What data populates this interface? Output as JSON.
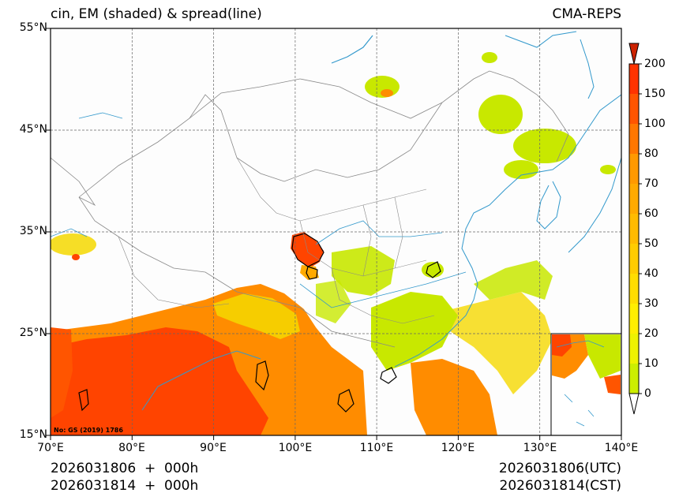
{
  "header": {
    "title_left": "cin, EM (shaded) & spread(line)",
    "title_right": "CMA-REPS"
  },
  "axes": {
    "lat_labels": [
      "55°N",
      "45°N",
      "35°N",
      "25°N",
      "15°N"
    ],
    "lon_labels": [
      "70°E",
      "80°E",
      "90°E",
      "100°E",
      "110°E",
      "120°E",
      "130°E",
      "140°E"
    ]
  },
  "colorbar": {
    "labels": [
      "200",
      "150",
      "100",
      "80",
      "70",
      "60",
      "50",
      "40",
      "30",
      "20",
      "10",
      "0"
    ],
    "colors": [
      "#ff3300",
      "#ff5500",
      "#ff7700",
      "#ff9900",
      "#ffaa00",
      "#ffbb00",
      "#ffcc00",
      "#ffdd00",
      "#ffee00",
      "#eef200",
      "#ccee00"
    ]
  },
  "footer": {
    "left_line1": "2026031806  +  000h",
    "left_line2": "2026031814  +  000h",
    "right_line1": "2026031806(UTC)",
    "right_line2": "2026031814(CST)"
  },
  "map": {
    "stamp": "No: GS (2019) 1786",
    "colors": {
      "orange_red": "#ff4400",
      "orange": "#ff8c00",
      "yellow": "#f5d800",
      "yellow_green": "#c8e800",
      "coast": "#3399cc",
      "border": "#888888",
      "grid": "#666666"
    }
  }
}
